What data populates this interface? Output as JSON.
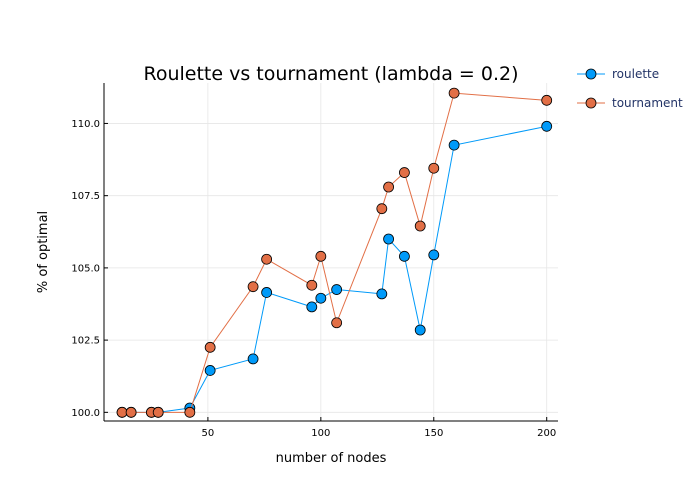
{
  "chart_data": {
    "type": "line",
    "title": "Roulette vs tournament (lambda = 0.2)",
    "xlabel": "number of nodes",
    "ylabel": "% of optimal",
    "xlim": [
      4,
      205
    ],
    "ylim": [
      99.7,
      111.4
    ],
    "xticks": [
      50,
      100,
      150,
      200
    ],
    "yticks": [
      100.0,
      102.5,
      105.0,
      107.5,
      110.0
    ],
    "ytick_labels": [
      "100.0",
      "102.5",
      "105.0",
      "107.5",
      "110.0"
    ],
    "grid": true,
    "legend_position": "top-right outside",
    "series": [
      {
        "name": "roulette",
        "color": "#009AF9",
        "x": [
          12,
          16,
          25,
          28,
          42,
          51,
          70,
          76,
          96,
          100,
          107,
          127,
          130,
          137,
          144,
          150,
          159,
          200
        ],
        "y": [
          100.0,
          100.0,
          100.0,
          100.0,
          100.15,
          101.45,
          101.85,
          104.15,
          103.65,
          103.95,
          104.25,
          104.1,
          106.0,
          105.4,
          102.85,
          105.45,
          109.25,
          109.9
        ]
      },
      {
        "name": "tournament",
        "color": "#E26F46",
        "x": [
          12,
          16,
          25,
          28,
          42,
          51,
          70,
          76,
          96,
          100,
          107,
          127,
          130,
          137,
          144,
          150,
          159,
          200
        ],
        "y": [
          100.0,
          100.0,
          100.0,
          100.0,
          100.0,
          102.25,
          104.35,
          105.3,
          104.4,
          105.4,
          103.1,
          107.05,
          107.8,
          108.3,
          106.45,
          108.45,
          111.05,
          110.8
        ]
      }
    ]
  }
}
